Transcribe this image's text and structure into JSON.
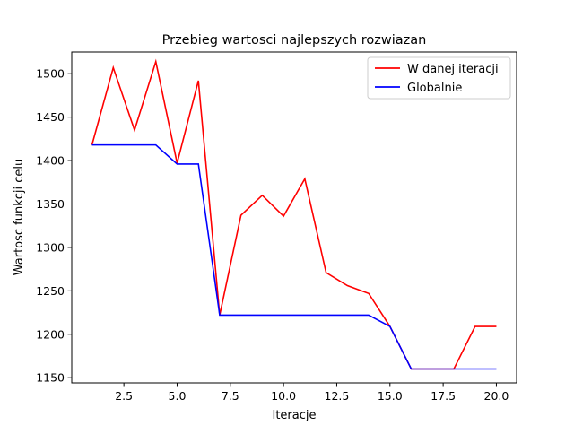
{
  "chart_data": {
    "type": "line",
    "title": "Przebieg wartosci najlepszych rozwiazan",
    "xlabel": "Iteracje",
    "ylabel": "Wartosc funkcji celu",
    "xlim": [
      0.05,
      20.95
    ],
    "ylim": [
      1144,
      1525
    ],
    "xticks": [
      2.5,
      5.0,
      7.5,
      10.0,
      12.5,
      15.0,
      17.5,
      20.0
    ],
    "xtick_labels": [
      "2.5",
      "5.0",
      "7.5",
      "10.0",
      "12.5",
      "15.0",
      "17.5",
      "20.0"
    ],
    "yticks": [
      1150,
      1200,
      1250,
      1300,
      1350,
      1400,
      1450,
      1500
    ],
    "ytick_labels": [
      "1150",
      "1200",
      "1250",
      "1300",
      "1350",
      "1400",
      "1450",
      "1500"
    ],
    "grid": false,
    "legend_position": "top-right",
    "x": [
      1,
      2,
      3,
      4,
      5,
      6,
      7,
      8,
      9,
      10,
      11,
      12,
      13,
      14,
      15,
      16,
      17,
      18,
      19,
      20
    ],
    "series": [
      {
        "name": "W danej iteracji",
        "color": "#ff0000",
        "values": [
          1418,
          1507,
          1435,
          1514,
          1397,
          1492,
          1222,
          1337,
          1360,
          1336,
          1379,
          1271,
          1256,
          1247,
          1209,
          1160,
          1160,
          1160,
          1209,
          1209
        ]
      },
      {
        "name": "Globalnie",
        "color": "#0000ff",
        "values": [
          1418,
          1418,
          1418,
          1418,
          1396,
          1396,
          1222,
          1222,
          1222,
          1222,
          1222,
          1222,
          1222,
          1222,
          1209,
          1160,
          1160,
          1160,
          1160,
          1160
        ]
      }
    ]
  }
}
